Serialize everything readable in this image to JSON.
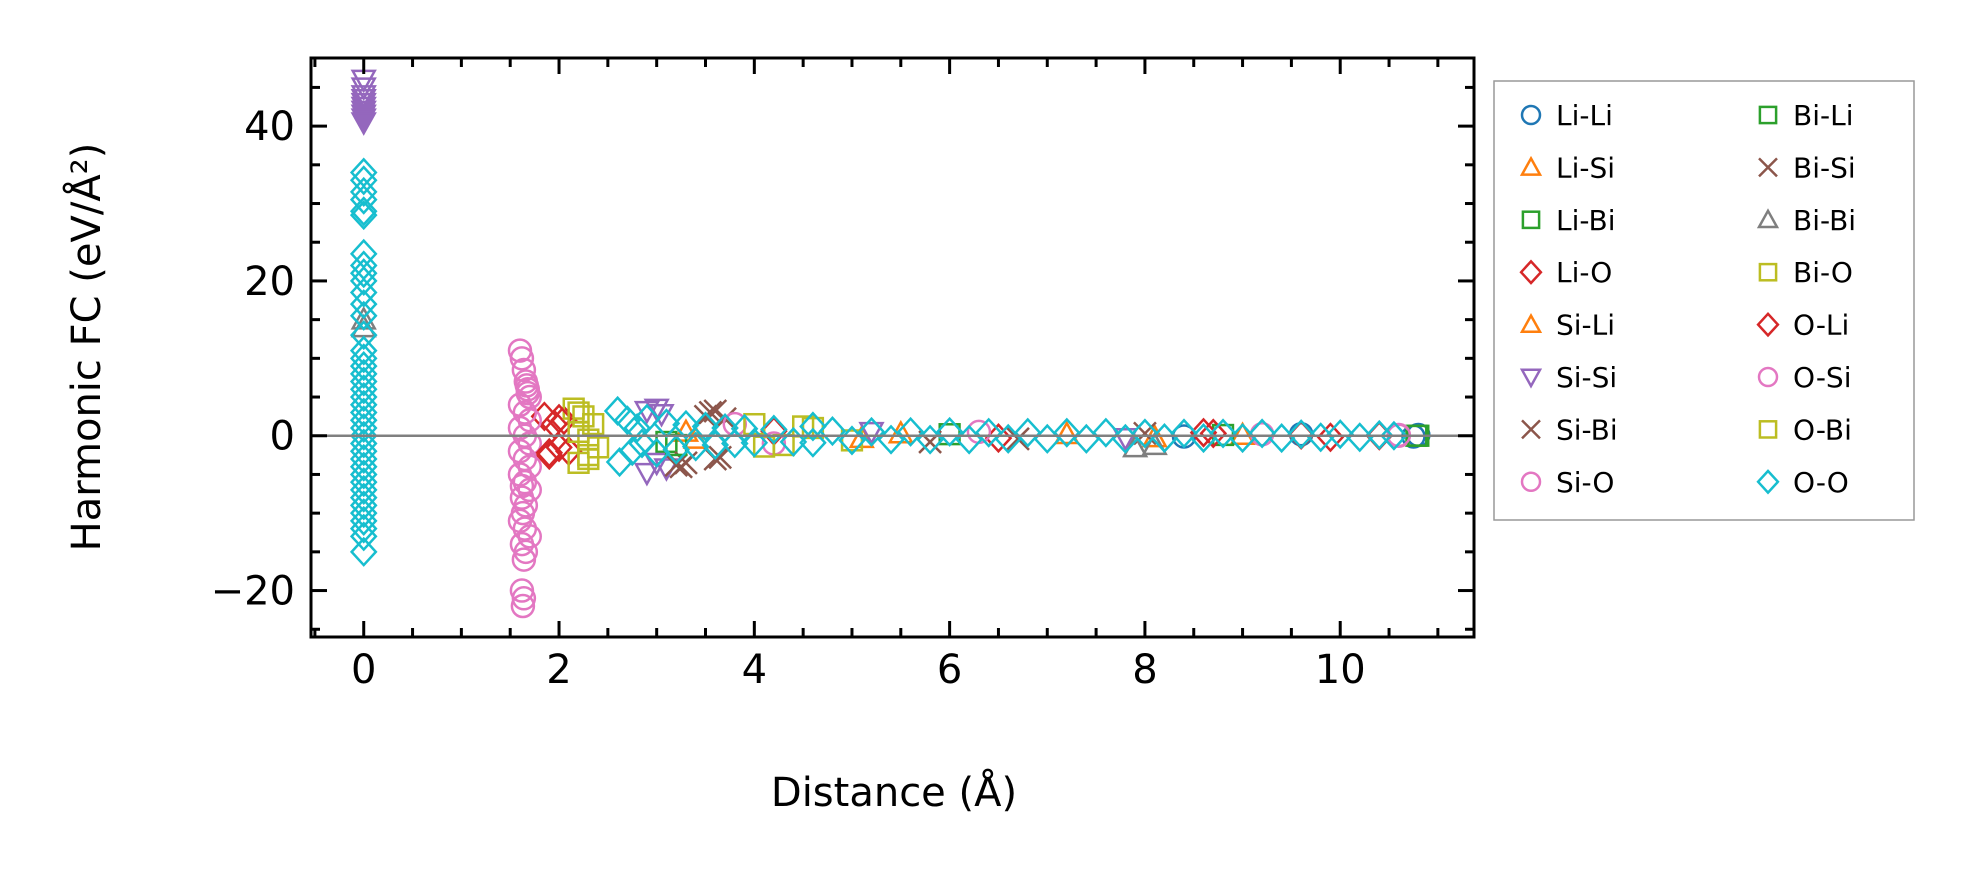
{
  "chart_data": {
    "type": "scatter",
    "title": "",
    "xlabel": "Distance (Å)",
    "ylabel": "Harmonic FC (eV/Å²)",
    "xlim": [
      -0.54,
      11.37
    ],
    "ylim": [
      -26.0,
      48.8
    ],
    "xticks": [
      0,
      2,
      4,
      6,
      8,
      10
    ],
    "xtick_labels": [
      "0",
      "2",
      "4",
      "6",
      "8",
      "10"
    ],
    "yticks": [
      -20,
      0,
      20,
      40
    ],
    "ytick_labels": [
      "−20",
      "0",
      "20",
      "40"
    ],
    "grid": false,
    "zero_line": true,
    "legend_position": "outside-right",
    "series": [
      {
        "name": "Li-Li",
        "marker": "circle",
        "color": "#1f77b4",
        "points": [
          [
            10.8,
            0.1
          ],
          [
            10.75,
            -0.1
          ],
          [
            9.6,
            0.2
          ],
          [
            8.4,
            -0.1
          ]
        ]
      },
      {
        "name": "Li-Si",
        "marker": "triangle-up",
        "color": "#ff7f0e",
        "points": [
          [
            3.3,
            0.5
          ],
          [
            5.1,
            -0.3
          ],
          [
            7.2,
            0.2
          ],
          [
            9.0,
            0.1
          ]
        ]
      },
      {
        "name": "Li-Bi",
        "marker": "square",
        "color": "#2ca02c",
        "points": [
          [
            3.1,
            -0.8
          ],
          [
            6.0,
            0.2
          ],
          [
            8.8,
            0.1
          ],
          [
            10.78,
            0.0
          ]
        ]
      },
      {
        "name": "Li-O",
        "marker": "diamond",
        "color": "#d62728",
        "points": [
          [
            1.85,
            2.5
          ],
          [
            1.9,
            -2.5
          ],
          [
            1.95,
            1.5
          ],
          [
            2.0,
            -1.5
          ],
          [
            2.05,
            2.0
          ],
          [
            2.1,
            -2.0
          ],
          [
            4.2,
            0.6
          ],
          [
            6.5,
            -0.3
          ],
          [
            8.7,
            0.3
          ],
          [
            9.6,
            0.1
          ],
          [
            10.4,
            0.0
          ]
        ]
      },
      {
        "name": "Si-Li",
        "marker": "triangle-up",
        "color": "#ff7f0e",
        "points": [
          [
            3.4,
            -0.4
          ],
          [
            5.5,
            0.3
          ],
          [
            8.1,
            -0.2
          ]
        ]
      },
      {
        "name": "Si-Si",
        "marker": "triangle-down",
        "color": "#9467bd",
        "points": [
          [
            0,
            46
          ],
          [
            0,
            45
          ],
          [
            0,
            44
          ],
          [
            0,
            43.5
          ],
          [
            0,
            43
          ],
          [
            0,
            42.5
          ],
          [
            0,
            42
          ],
          [
            0,
            41.5
          ],
          [
            0,
            41
          ],
          [
            0,
            40.5
          ],
          [
            2.9,
            3.2
          ],
          [
            3.0,
            3.5
          ],
          [
            3.05,
            2.8
          ],
          [
            2.9,
            -4.8
          ],
          [
            3.0,
            -3.5
          ],
          [
            3.1,
            -4.2
          ],
          [
            5.2,
            0.5
          ],
          [
            7.8,
            -0.3
          ]
        ]
      },
      {
        "name": "Si-Bi",
        "marker": "x",
        "color": "#8c564b",
        "points": [
          [
            3.2,
            -3.8
          ],
          [
            3.3,
            -3.5
          ],
          [
            3.5,
            2.5
          ],
          [
            3.6,
            3.2
          ],
          [
            3.65,
            -2.8
          ],
          [
            3.7,
            2.2
          ],
          [
            5.8,
            -0.8
          ],
          [
            8.0,
            0.3
          ]
        ]
      },
      {
        "name": "Si-O",
        "marker": "circle",
        "color": "#e377c2",
        "points": [
          [
            1.6,
            11
          ],
          [
            1.62,
            10
          ],
          [
            1.64,
            8.5
          ],
          [
            1.66,
            7
          ],
          [
            1.68,
            6
          ],
          [
            1.7,
            5
          ],
          [
            1.6,
            4
          ],
          [
            1.65,
            3
          ],
          [
            1.7,
            2
          ],
          [
            1.6,
            1
          ],
          [
            1.65,
            0
          ],
          [
            1.7,
            -1
          ],
          [
            1.6,
            -2
          ],
          [
            1.65,
            -3
          ],
          [
            1.7,
            -4
          ],
          [
            1.6,
            -5
          ],
          [
            1.65,
            -6
          ],
          [
            1.7,
            -7
          ],
          [
            1.62,
            -8
          ],
          [
            1.66,
            -9
          ],
          [
            1.6,
            -11
          ],
          [
            1.65,
            -12
          ],
          [
            1.7,
            -13
          ],
          [
            1.62,
            -14
          ],
          [
            1.66,
            -15
          ],
          [
            1.64,
            -16
          ],
          [
            1.62,
            -20
          ],
          [
            1.64,
            -21
          ],
          [
            1.63,
            -22
          ],
          [
            3.8,
            1.5
          ],
          [
            4.2,
            -1
          ],
          [
            6.3,
            0.5
          ],
          [
            9.2,
            0.2
          ],
          [
            10.6,
            0
          ]
        ]
      },
      {
        "name": "Bi-Li",
        "marker": "square",
        "color": "#2ca02c",
        "points": [
          [
            3.2,
            -1.2
          ],
          [
            10.8,
            0.0
          ]
        ]
      },
      {
        "name": "Bi-Si",
        "marker": "x",
        "color": "#8c564b",
        "points": [
          [
            3.25,
            -4.0
          ],
          [
            3.55,
            3.0
          ],
          [
            3.6,
            -3.0
          ],
          [
            6.7,
            -0.4
          ]
        ]
      },
      {
        "name": "Bi-Bi",
        "marker": "triangle-up",
        "color": "#7f7f7f",
        "points": [
          [
            0,
            15
          ],
          [
            0,
            14
          ],
          [
            7.9,
            -1.5
          ],
          [
            8.1,
            -1.2
          ]
        ]
      },
      {
        "name": "Bi-O",
        "marker": "square",
        "color": "#bcbd22",
        "points": [
          [
            2.15,
            3.5
          ],
          [
            2.2,
            -3.5
          ],
          [
            2.25,
            2.5
          ],
          [
            2.3,
            -2.5
          ],
          [
            2.35,
            1.5
          ],
          [
            2.4,
            -1.5
          ],
          [
            2.2,
            0.5
          ],
          [
            2.3,
            -0.5
          ],
          [
            4.0,
            1.5
          ],
          [
            4.3,
            -1.2
          ],
          [
            4.6,
            1.0
          ],
          [
            5.0,
            -0.6
          ]
        ]
      },
      {
        "name": "O-Li",
        "marker": "diamond",
        "color": "#d62728",
        "points": [
          [
            1.9,
            -2.2
          ],
          [
            2.0,
            2.2
          ],
          [
            8.6,
            0.4
          ],
          [
            9.9,
            -0.2
          ]
        ]
      },
      {
        "name": "O-Si",
        "marker": "circle",
        "color": "#e377c2",
        "points": [
          [
            1.62,
            -6.5
          ],
          [
            1.67,
            6.5
          ],
          [
            1.63,
            -10
          ],
          [
            1.68,
            5.5
          ],
          [
            10.6,
            0.1
          ]
        ]
      },
      {
        "name": "O-Bi",
        "marker": "square",
        "color": "#bcbd22",
        "points": [
          [
            2.2,
            3.0
          ],
          [
            2.3,
            -3.0
          ],
          [
            4.1,
            -1.4
          ],
          [
            4.5,
            1.2
          ]
        ]
      },
      {
        "name": "O-O",
        "marker": "diamond",
        "color": "#17becf",
        "points": [
          [
            0,
            34
          ],
          [
            0,
            33
          ],
          [
            0,
            31.5
          ],
          [
            0,
            30.5
          ],
          [
            0,
            29
          ],
          [
            0,
            28.5
          ],
          [
            0,
            23.5
          ],
          [
            0,
            22
          ],
          [
            0,
            21
          ],
          [
            0,
            20
          ],
          [
            0,
            18.5
          ],
          [
            0,
            17
          ],
          [
            0,
            15.5
          ],
          [
            0,
            13
          ],
          [
            0,
            11
          ],
          [
            0,
            10
          ],
          [
            0,
            9
          ],
          [
            0,
            8
          ],
          [
            0,
            7
          ],
          [
            0,
            6
          ],
          [
            0,
            5
          ],
          [
            0,
            4
          ],
          [
            0,
            3
          ],
          [
            0,
            2
          ],
          [
            0,
            1
          ],
          [
            0,
            0
          ],
          [
            0,
            -1
          ],
          [
            0,
            -2
          ],
          [
            0,
            -3
          ],
          [
            0,
            -4
          ],
          [
            0,
            -5
          ],
          [
            0,
            -6
          ],
          [
            0,
            -7
          ],
          [
            0,
            -8
          ],
          [
            0,
            -9
          ],
          [
            0,
            -10
          ],
          [
            0,
            -11
          ],
          [
            0,
            -12
          ],
          [
            0,
            -13
          ],
          [
            0,
            -15
          ],
          [
            2.6,
            3.2
          ],
          [
            2.62,
            -3.4
          ],
          [
            2.7,
            2.0
          ],
          [
            2.75,
            -2.0
          ],
          [
            2.8,
            1.0
          ],
          [
            2.85,
            -1.0
          ],
          [
            2.9,
            2.2
          ],
          [
            3.0,
            -2.2
          ],
          [
            3.1,
            1.6
          ],
          [
            3.2,
            -1.8
          ],
          [
            3.3,
            1.4
          ],
          [
            3.4,
            -1.4
          ],
          [
            3.5,
            1.2
          ],
          [
            3.6,
            -1.2
          ],
          [
            3.7,
            1.0
          ],
          [
            3.8,
            -1.0
          ],
          [
            3.9,
            0.9
          ],
          [
            4.0,
            -0.9
          ],
          [
            4.2,
            0.8
          ],
          [
            4.4,
            -0.8
          ],
          [
            4.6,
            1.2
          ],
          [
            4.6,
            -0.9
          ],
          [
            4.8,
            0.6
          ],
          [
            5.0,
            -0.6
          ],
          [
            5.2,
            0.5
          ],
          [
            5.4,
            -0.5
          ],
          [
            5.6,
            0.5
          ],
          [
            5.8,
            -0.5
          ],
          [
            6.0,
            0.5
          ],
          [
            6.2,
            -0.5
          ],
          [
            6.4,
            0.4
          ],
          [
            6.6,
            -0.4
          ],
          [
            6.8,
            0.4
          ],
          [
            7.0,
            -0.4
          ],
          [
            7.2,
            0.4
          ],
          [
            7.4,
            -0.4
          ],
          [
            7.6,
            0.4
          ],
          [
            7.8,
            -0.4
          ],
          [
            8.0,
            0.3
          ],
          [
            8.2,
            -0.3
          ],
          [
            8.4,
            0.3
          ],
          [
            8.6,
            -0.3
          ],
          [
            8.8,
            0.3
          ],
          [
            9.0,
            -0.3
          ],
          [
            9.2,
            0.3
          ],
          [
            9.4,
            -0.3
          ],
          [
            9.6,
            0.2
          ],
          [
            9.8,
            -0.2
          ],
          [
            10.0,
            0.2
          ],
          [
            10.2,
            -0.2
          ],
          [
            10.4,
            0.1
          ],
          [
            10.55,
            0.0
          ]
        ]
      }
    ]
  }
}
